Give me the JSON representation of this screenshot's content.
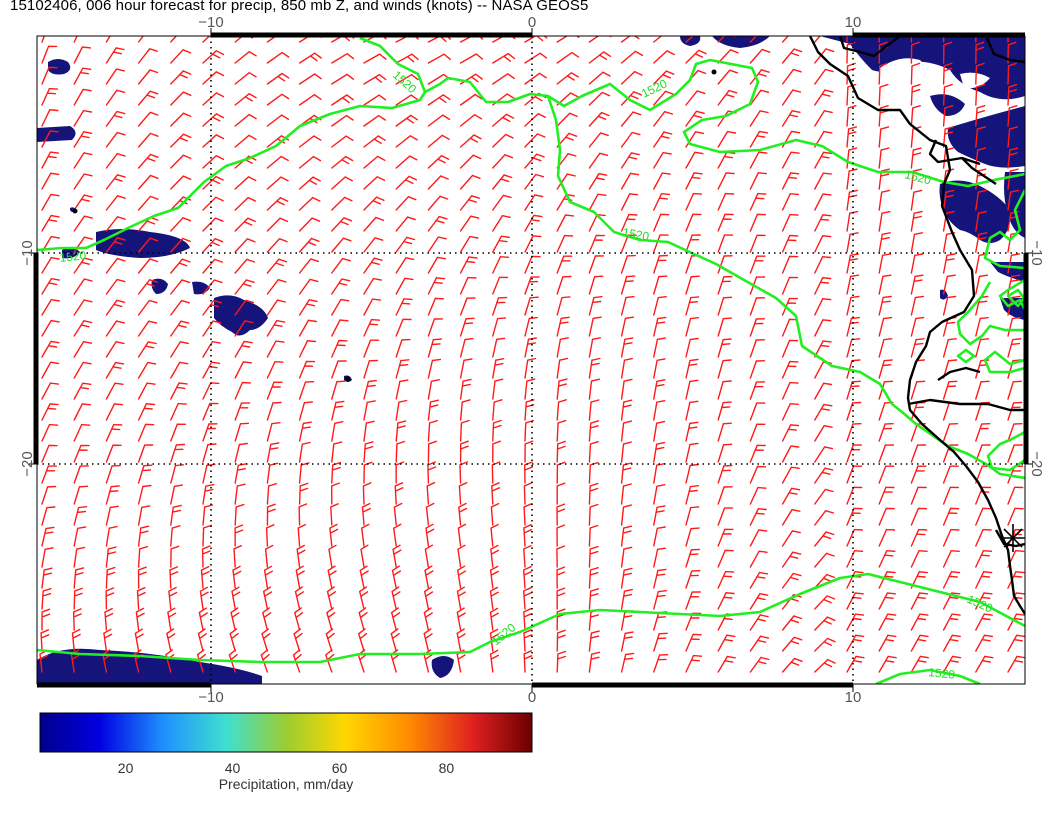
{
  "title": "15102406, 006 hour forecast for precip, 850 mb Z, and winds (knots) -- NASA GEOS5",
  "map": {
    "x_ticks_top": [
      "−10",
      "0",
      "10"
    ],
    "x_ticks_bottom": [
      "−10",
      "0",
      "10"
    ],
    "y_ticks_left": [
      "−10",
      "−20"
    ],
    "y_ticks_right": [
      "−10",
      "−20"
    ],
    "contour_value": "1520",
    "colors": {
      "precip": "#14147a",
      "contour": "#22ee22",
      "barbs": "#ff1a1a",
      "coast": "#000000",
      "grid": "#000000"
    }
  },
  "colorbar": {
    "label": "Precipitation, mm/day",
    "ticks": [
      "20",
      "40",
      "60",
      "80"
    ],
    "range": [
      4,
      96
    ],
    "colormap": [
      "#00008b",
      "#0000e0",
      "#1e90ff",
      "#40e0d0",
      "#9acd32",
      "#ffd700",
      "#ff8c00",
      "#e02020",
      "#6b0000"
    ]
  }
}
